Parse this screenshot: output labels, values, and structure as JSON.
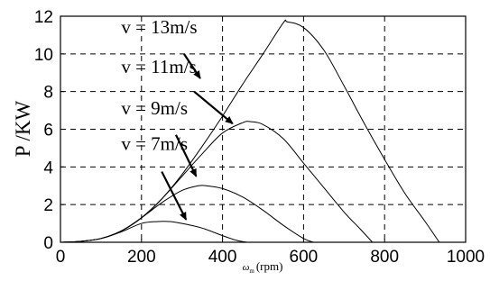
{
  "chart_data": {
    "type": "line",
    "xlabel_symbol": "ω",
    "xlabel_sub": "m",
    "xlabel_unit": "(rpm)",
    "ylabel": "P /KW",
    "xlim": [
      0,
      1000
    ],
    "ylim": [
      0,
      12
    ],
    "xticks": [
      0,
      200,
      400,
      600,
      800,
      1000
    ],
    "yticks": [
      0,
      2,
      4,
      6,
      8,
      10,
      12
    ],
    "grid": true,
    "series": [
      {
        "name": "v = 13m/s",
        "x": [
          0,
          50,
          100,
          150,
          200,
          250,
          300,
          350,
          400,
          450,
          500,
          550,
          560,
          600,
          650,
          700,
          750,
          800,
          850,
          900,
          935
        ],
        "y": [
          0,
          0.05,
          0.2,
          0.6,
          1.3,
          2.3,
          3.6,
          5.1,
          6.7,
          8.4,
          10.0,
          11.65,
          11.7,
          11.4,
          10.2,
          8.3,
          6.3,
          4.4,
          2.6,
          1.1,
          0
        ]
      },
      {
        "name": "v = 11m/s",
        "x": [
          0,
          50,
          100,
          150,
          200,
          250,
          300,
          350,
          400,
          450,
          470,
          500,
          550,
          600,
          650,
          700,
          740,
          770
        ],
        "y": [
          0,
          0.05,
          0.2,
          0.6,
          1.3,
          2.3,
          3.5,
          4.7,
          5.8,
          6.35,
          6.4,
          6.25,
          5.5,
          4.2,
          2.9,
          1.6,
          0.7,
          0
        ]
      },
      {
        "name": "v = 9m/s",
        "x": [
          0,
          50,
          100,
          150,
          200,
          250,
          300,
          340,
          360,
          400,
          450,
          500,
          550,
          600,
          625
        ],
        "y": [
          0,
          0.05,
          0.2,
          0.6,
          1.3,
          2.1,
          2.75,
          3.0,
          3.0,
          2.85,
          2.4,
          1.7,
          0.9,
          0.2,
          0
        ]
      },
      {
        "name": "v = 7m/s",
        "x": [
          0,
          50,
          100,
          150,
          200,
          240,
          270,
          300,
          350,
          400,
          435,
          460
        ],
        "y": [
          0,
          0.05,
          0.2,
          0.55,
          1.0,
          1.1,
          1.1,
          1.0,
          0.75,
          0.35,
          0.1,
          0
        ]
      }
    ],
    "annotations": [
      {
        "text": "v = 13m/s",
        "tx": 150,
        "ty": 11.1,
        "ax1": 305,
        "ay1": 10.0,
        "ax2": 345,
        "ay2": 8.7
      },
      {
        "text": "v = 11m/s",
        "tx": 150,
        "ty": 9.0,
        "ax1": 330,
        "ay1": 8.0,
        "ax2": 425,
        "ay2": 6.3
      },
      {
        "text": "v = 9m/s",
        "tx": 150,
        "ty": 6.8,
        "ax1": 285,
        "ay1": 5.7,
        "ax2": 335,
        "ay2": 3.5
      },
      {
        "text": "v = 7m/s",
        "tx": 150,
        "ty": 4.9,
        "ax1": 250,
        "ay1": 3.75,
        "ax2": 310,
        "ay2": 1.2
      }
    ]
  }
}
